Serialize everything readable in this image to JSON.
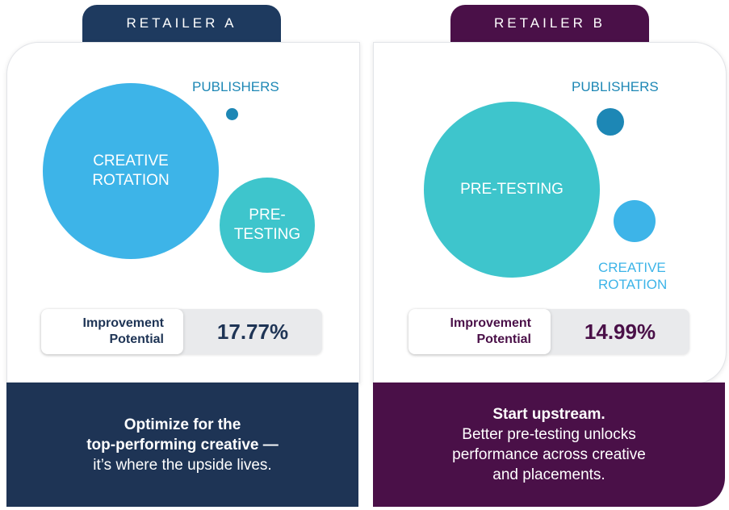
{
  "retailer_a": {
    "tab_label": "RETAILER A",
    "bubbles": {
      "creative_rotation": [
        "CREATIVE",
        "ROTATION"
      ],
      "pre_testing": [
        "PRE-",
        "TESTING"
      ],
      "publishers_label": "PUBLISHERS"
    },
    "metric": {
      "label_line1": "Improvement",
      "label_line2": "Potential",
      "value": "17.77%"
    },
    "footer": {
      "line1": "Optimize for the",
      "line2": "top-performing creative —",
      "line3": "it’s where the upside lives."
    }
  },
  "retailer_b": {
    "tab_label": "RETAILER B",
    "bubbles": {
      "pre_testing": [
        "PRE-TESTING"
      ],
      "publishers_label": "PUBLISHERS",
      "creative_rotation_label": [
        "CREATIVE",
        "ROTATION"
      ]
    },
    "metric": {
      "label_line1": "Improvement",
      "label_line2": "Potential",
      "value": "14.99%"
    },
    "footer": {
      "line1": "Start upstream.",
      "line2": "Better pre-testing unlocks",
      "line3": "performance across creative",
      "line4": "and placements."
    }
  },
  "colors": {
    "navy": "#1e3a5f",
    "plum": "#4a1048",
    "creative_blue": "#3db4e8",
    "pretesting_teal": "#3ec5cc",
    "publishers_blue": "#1d87b5",
    "metric_label_navy": "#1e3455",
    "metric_label_plum": "#4a1048"
  }
}
